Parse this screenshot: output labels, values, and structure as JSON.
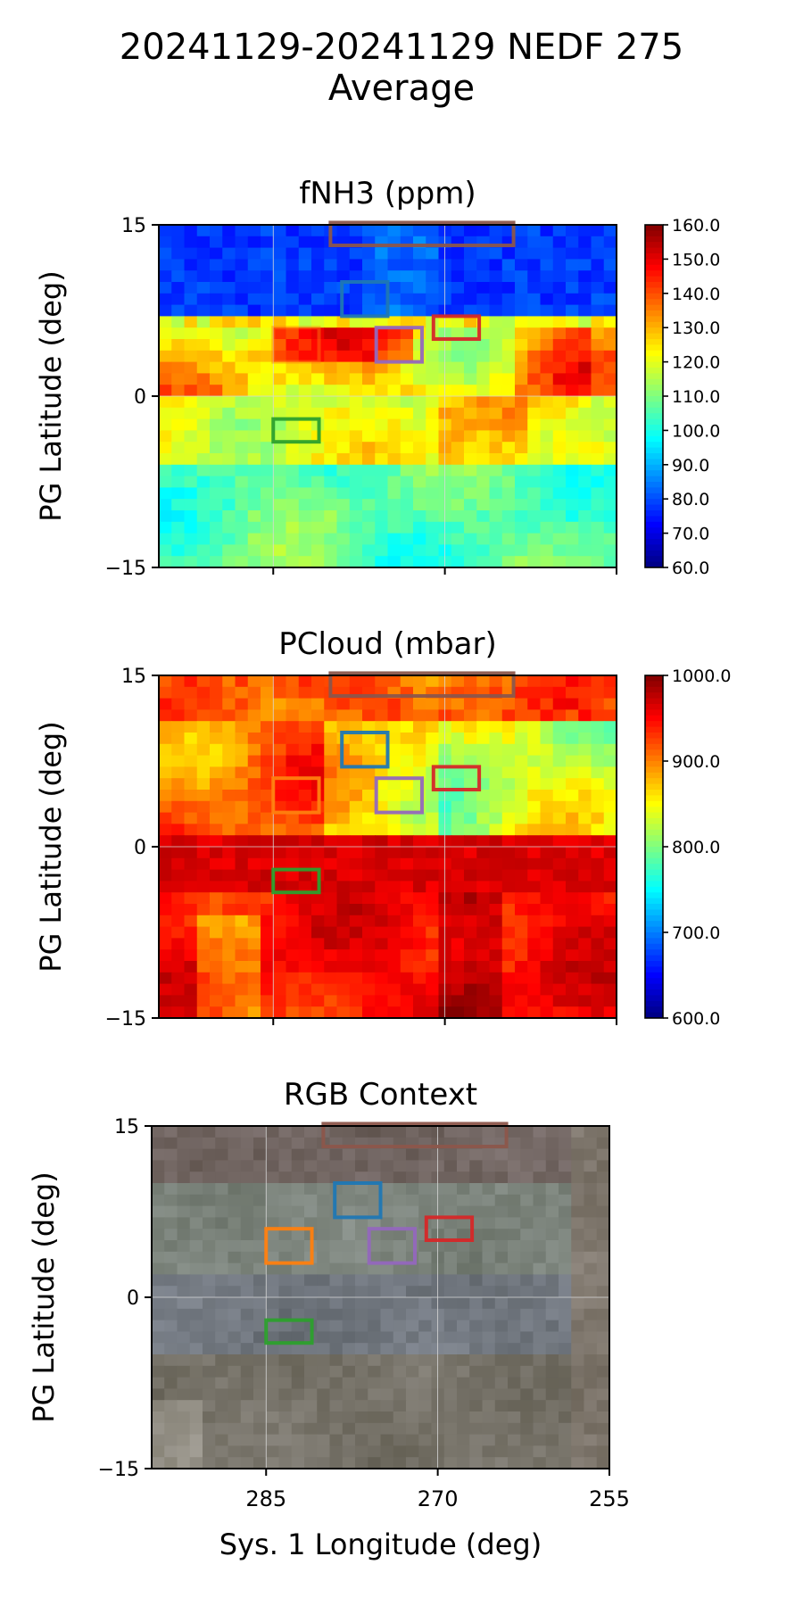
{
  "figure": {
    "title_line1": "20241129-20241129 NEDF 275",
    "title_line2": "Average"
  },
  "chart_data": [
    {
      "type": "heatmap",
      "title": "fNH3 (ppm)",
      "ylabel": "PG Latitude (deg)",
      "xlabel": "",
      "xlim": [
        295,
        255
      ],
      "ylim": [
        -15,
        15
      ],
      "xticks": [
        285,
        270,
        255
      ],
      "show_xticklabels": false,
      "yticks": [
        -15,
        0,
        15
      ],
      "ytick_labels": [
        "−15",
        "0",
        "15"
      ],
      "colormap": "jet",
      "color_range": [
        60,
        160
      ],
      "colorbar_ticks": [
        "160.0",
        "150.0",
        "140.0",
        "130.0",
        "120.0",
        "110.0",
        "100.0",
        "90.0",
        "80.0",
        "70.0",
        "60.0"
      ],
      "grid": true,
      "regions": [
        {
          "color": "#8c564b",
          "lon": [
            280,
            264
          ],
          "lat": [
            13.2,
            15.2
          ]
        },
        {
          "color": "#1f77b4",
          "lon": [
            279,
            275
          ],
          "lat": [
            7,
            10
          ]
        },
        {
          "color": "#d62728",
          "lon": [
            271,
            267
          ],
          "lat": [
            5,
            7
          ]
        },
        {
          "color": "#ff7f0e",
          "lon": [
            285,
            281
          ],
          "lat": [
            3,
            6
          ]
        },
        {
          "color": "#9467bd",
          "lon": [
            276,
            272
          ],
          "lat": [
            3,
            6
          ]
        },
        {
          "color": "#2ca02c",
          "lon": [
            285,
            281
          ],
          "lat": [
            -4,
            -2
          ]
        }
      ]
    },
    {
      "type": "heatmap",
      "title": "PCloud (mbar)",
      "ylabel": "PG Latitude (deg)",
      "xlabel": "",
      "xlim": [
        295,
        255
      ],
      "ylim": [
        -15,
        15
      ],
      "xticks": [
        285,
        270,
        255
      ],
      "show_xticklabels": false,
      "yticks": [
        -15,
        0,
        15
      ],
      "ytick_labels": [
        "−15",
        "0",
        "15"
      ],
      "colormap": "jet",
      "color_range": [
        600,
        1000
      ],
      "colorbar_ticks": [
        "1000.0",
        "900.0",
        "800.0",
        "700.0",
        "600.0"
      ],
      "grid": true,
      "regions": [
        {
          "color": "#8c564b",
          "lon": [
            280,
            264
          ],
          "lat": [
            13.2,
            15.2
          ]
        },
        {
          "color": "#1f77b4",
          "lon": [
            279,
            275
          ],
          "lat": [
            7,
            10
          ]
        },
        {
          "color": "#d62728",
          "lon": [
            271,
            267
          ],
          "lat": [
            5,
            7
          ]
        },
        {
          "color": "#ff7f0e",
          "lon": [
            285,
            281
          ],
          "lat": [
            3,
            6
          ]
        },
        {
          "color": "#9467bd",
          "lon": [
            276,
            272
          ],
          "lat": [
            3,
            6
          ]
        },
        {
          "color": "#2ca02c",
          "lon": [
            285,
            281
          ],
          "lat": [
            -4,
            -2
          ]
        }
      ]
    },
    {
      "type": "heatmap",
      "title": "RGB Context",
      "ylabel": "PG Latitude (deg)",
      "xlabel": "Sys. 1 Longitude (deg)",
      "xlim": [
        295,
        255
      ],
      "ylim": [
        -15,
        15
      ],
      "xticks": [
        285,
        270,
        255
      ],
      "xtick_labels": [
        "285",
        "270",
        "255"
      ],
      "show_xticklabels": true,
      "yticks": [
        -15,
        0,
        15
      ],
      "ytick_labels": [
        "−15",
        "0",
        "15"
      ],
      "colormap": "rgb",
      "grid": true,
      "regions": [
        {
          "color": "#8c564b",
          "lon": [
            280,
            264
          ],
          "lat": [
            13.2,
            15.2
          ]
        },
        {
          "color": "#1f77b4",
          "lon": [
            279,
            275
          ],
          "lat": [
            7,
            10
          ]
        },
        {
          "color": "#d62728",
          "lon": [
            271,
            267
          ],
          "lat": [
            5,
            7
          ]
        },
        {
          "color": "#ff7f0e",
          "lon": [
            285,
            281
          ],
          "lat": [
            3,
            6
          ]
        },
        {
          "color": "#9467bd",
          "lon": [
            276,
            272
          ],
          "lat": [
            3,
            6
          ]
        },
        {
          "color": "#2ca02c",
          "lon": [
            285,
            281
          ],
          "lat": [
            -4,
            -2
          ]
        }
      ]
    }
  ]
}
